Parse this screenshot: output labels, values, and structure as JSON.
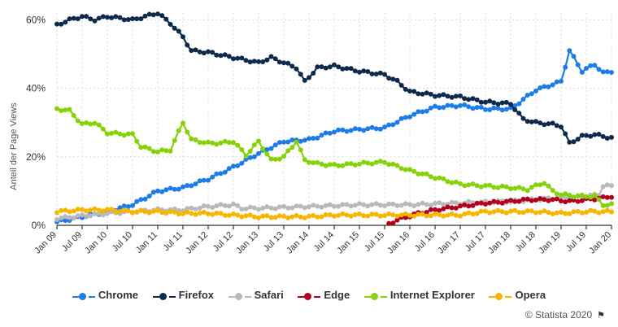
{
  "chart_data": {
    "type": "line",
    "ylabel": "Anteil der Page Views",
    "ylim": [
      0,
      62
    ],
    "yticks": [
      "0%",
      "20%",
      "40%",
      "60%"
    ],
    "ytick_values": [
      0,
      20,
      40,
      60
    ],
    "xtick_labels": [
      "Jan 09",
      "Jul 09",
      "Jan 10",
      "Jul 10",
      "Jan 11",
      "Jul 11",
      "Jan 12",
      "Jul 12",
      "Jan 13",
      "Jul 13",
      "Jan 14",
      "Jul 14",
      "Jan 15",
      "Jul 15",
      "Jan 16",
      "Jul 16",
      "Jan 17",
      "Jul 17",
      "Jan 18",
      "Jul 18",
      "Jan 19",
      "Jul 19",
      "Jan 20"
    ],
    "x_points": 133,
    "series": [
      {
        "name": "Chrome",
        "color": "#1c7ce8",
        "anchors": [
          [
            0,
            1
          ],
          [
            6,
            2.5
          ],
          [
            12,
            4
          ],
          [
            18,
            6
          ],
          [
            24,
            10
          ],
          [
            30,
            11
          ],
          [
            36,
            13.5
          ],
          [
            42,
            17
          ],
          [
            48,
            21
          ],
          [
            54,
            24.5
          ],
          [
            60,
            25
          ],
          [
            66,
            27.5
          ],
          [
            72,
            28
          ],
          [
            78,
            28.5
          ],
          [
            84,
            32
          ],
          [
            90,
            34.5
          ],
          [
            96,
            35
          ],
          [
            102,
            34
          ],
          [
            108,
            34
          ],
          [
            114,
            39.5
          ],
          [
            120,
            42
          ],
          [
            122,
            51
          ],
          [
            125,
            45
          ],
          [
            128,
            47
          ],
          [
            130,
            44.5
          ],
          [
            132,
            45
          ]
        ]
      },
      {
        "name": "Firefox",
        "color": "#0d2a4a",
        "anchors": [
          [
            0,
            58.5
          ],
          [
            3,
            60
          ],
          [
            6,
            61
          ],
          [
            9,
            60
          ],
          [
            12,
            61
          ],
          [
            18,
            60
          ],
          [
            24,
            62
          ],
          [
            27,
            59
          ],
          [
            30,
            55
          ],
          [
            32,
            51
          ],
          [
            36,
            50.5
          ],
          [
            42,
            49
          ],
          [
            48,
            47.5
          ],
          [
            51,
            49
          ],
          [
            54,
            47.5
          ],
          [
            57,
            46
          ],
          [
            59,
            42
          ],
          [
            62,
            46
          ],
          [
            66,
            46.5
          ],
          [
            72,
            45
          ],
          [
            78,
            44
          ],
          [
            81,
            42
          ],
          [
            84,
            39
          ],
          [
            90,
            38
          ],
          [
            96,
            37.5
          ],
          [
            102,
            36
          ],
          [
            108,
            35.5
          ],
          [
            111,
            31
          ],
          [
            114,
            30
          ],
          [
            118,
            29.5
          ],
          [
            120,
            29
          ],
          [
            122,
            24
          ],
          [
            125,
            26
          ],
          [
            128,
            26.5
          ],
          [
            132,
            25.5
          ]
        ]
      },
      {
        "name": "Safari",
        "color": "#b9b9b9",
        "anchors": [
          [
            0,
            2
          ],
          [
            12,
            3.5
          ],
          [
            24,
            4.5
          ],
          [
            30,
            4.5
          ],
          [
            36,
            5.5
          ],
          [
            42,
            6
          ],
          [
            44,
            5
          ],
          [
            48,
            5
          ],
          [
            60,
            5.5
          ],
          [
            72,
            6
          ],
          [
            84,
            6
          ],
          [
            96,
            6.5
          ],
          [
            108,
            7
          ],
          [
            114,
            7.5
          ],
          [
            120,
            8
          ],
          [
            126,
            8.5
          ],
          [
            129,
            9
          ],
          [
            130,
            11.5
          ],
          [
            132,
            11.5
          ]
        ]
      },
      {
        "name": "Edge",
        "color": "#b0001e",
        "anchors": [
          [
            79,
            0.5
          ],
          [
            82,
            2
          ],
          [
            86,
            3.5
          ],
          [
            90,
            4.5
          ],
          [
            96,
            5.5
          ],
          [
            102,
            6.5
          ],
          [
            108,
            7
          ],
          [
            112,
            7.5
          ],
          [
            118,
            7.5
          ],
          [
            122,
            7
          ],
          [
            126,
            7.5
          ],
          [
            130,
            8
          ],
          [
            132,
            8.5
          ]
        ]
      },
      {
        "name": "Internet Explorer",
        "color": "#86d10a",
        "anchors": [
          [
            0,
            34
          ],
          [
            3,
            33.5
          ],
          [
            6,
            29.5
          ],
          [
            9,
            30
          ],
          [
            12,
            27
          ],
          [
            18,
            26.5
          ],
          [
            20,
            23
          ],
          [
            24,
            21.5
          ],
          [
            27,
            22
          ],
          [
            30,
            30
          ],
          [
            32,
            25
          ],
          [
            36,
            24
          ],
          [
            39,
            24
          ],
          [
            42,
            24.5
          ],
          [
            45,
            20.5
          ],
          [
            48,
            24.5
          ],
          [
            51,
            19
          ],
          [
            54,
            20
          ],
          [
            57,
            24.5
          ],
          [
            59,
            19
          ],
          [
            62,
            18
          ],
          [
            66,
            17.5
          ],
          [
            72,
            18
          ],
          [
            78,
            18.5
          ],
          [
            84,
            16
          ],
          [
            90,
            14
          ],
          [
            96,
            12
          ],
          [
            102,
            11.5
          ],
          [
            108,
            11
          ],
          [
            112,
            10.5
          ],
          [
            116,
            12.5
          ],
          [
            118,
            10
          ],
          [
            120,
            9
          ],
          [
            124,
            8.5
          ],
          [
            128,
            8.5
          ],
          [
            130,
            6
          ],
          [
            132,
            6
          ]
        ]
      },
      {
        "name": "Opera",
        "color": "#f7b500",
        "anchors": [
          [
            0,
            4
          ],
          [
            6,
            4.5
          ],
          [
            12,
            4.5
          ],
          [
            18,
            4
          ],
          [
            24,
            4
          ],
          [
            30,
            3.5
          ],
          [
            36,
            3.5
          ],
          [
            42,
            3
          ],
          [
            48,
            2.5
          ],
          [
            54,
            2.5
          ],
          [
            60,
            2.5
          ],
          [
            66,
            3
          ],
          [
            72,
            3
          ],
          [
            78,
            3
          ],
          [
            84,
            3
          ],
          [
            90,
            3
          ],
          [
            96,
            3
          ],
          [
            102,
            4
          ],
          [
            108,
            4
          ],
          [
            114,
            4
          ],
          [
            120,
            3.5
          ],
          [
            126,
            4
          ],
          [
            132,
            4
          ]
        ]
      }
    ]
  },
  "legend": {
    "items": [
      {
        "label": "Chrome",
        "color": "#1c7ce8"
      },
      {
        "label": "Firefox",
        "color": "#0d2a4a"
      },
      {
        "label": "Safari",
        "color": "#b9b9b9"
      },
      {
        "label": "Edge",
        "color": "#b0001e"
      },
      {
        "label": "Internet Explorer",
        "color": "#86d10a"
      },
      {
        "label": "Opera",
        "color": "#f7b500"
      }
    ]
  },
  "credit": "© Statista 2020",
  "credit_icon": "flag-icon"
}
